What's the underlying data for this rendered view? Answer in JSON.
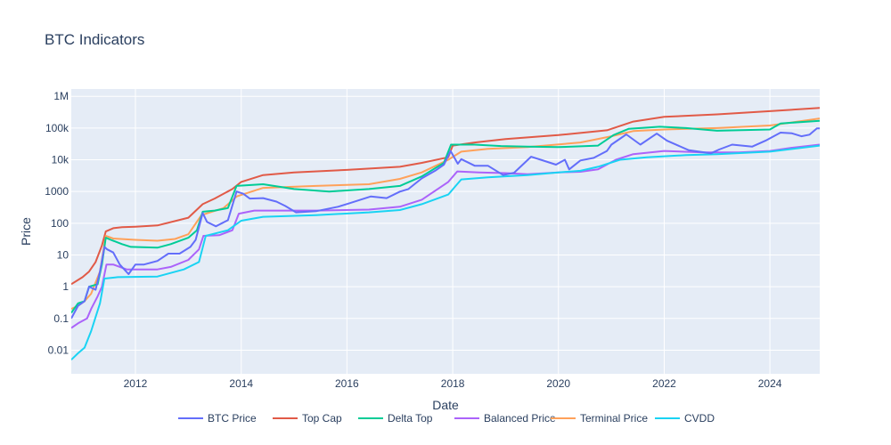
{
  "chart_data": {
    "type": "line",
    "title": "BTC Indicators",
    "xlabel": "Date",
    "ylabel": "Price",
    "x_range": [
      "2010-10-15",
      "2024-12-10"
    ],
    "y_scale": "log",
    "y_range": [
      0.0018,
      1700000
    ],
    "grid": true,
    "legend_position": "bottom-center",
    "plot_background": "#e5ecf6",
    "x_ticks": [
      "2012",
      "2014",
      "2016",
      "2018",
      "2020",
      "2022",
      "2024"
    ],
    "y_ticks": [
      {
        "value": 0.01,
        "label": "0.01"
      },
      {
        "value": 0.1,
        "label": "0.1"
      },
      {
        "value": 1,
        "label": "1"
      },
      {
        "value": 10,
        "label": "10"
      },
      {
        "value": 100,
        "label": "100"
      },
      {
        "value": 1000,
        "label": "1000"
      },
      {
        "value": 10000,
        "label": "10k"
      },
      {
        "value": 100000,
        "label": "100k"
      },
      {
        "value": 1000000,
        "label": "1M"
      }
    ],
    "series": [
      {
        "name": "BTC Price",
        "color": "#636efa",
        "points": [
          [
            "2010-10-15",
            0.1
          ],
          [
            "2010-12-01",
            0.25
          ],
          [
            "2011-01-15",
            0.35
          ],
          [
            "2011-02-15",
            1.0
          ],
          [
            "2011-04-01",
            0.8
          ],
          [
            "2011-05-01",
            3.0
          ],
          [
            "2011-06-01",
            18
          ],
          [
            "2011-06-20",
            15
          ],
          [
            "2011-08-01",
            12
          ],
          [
            "2011-09-15",
            5
          ],
          [
            "2011-11-15",
            2.5
          ],
          [
            "2012-01-01",
            5
          ],
          [
            "2012-03-01",
            5
          ],
          [
            "2012-06-01",
            6.5
          ],
          [
            "2012-08-15",
            11
          ],
          [
            "2012-11-01",
            11
          ],
          [
            "2013-01-15",
            18
          ],
          [
            "2013-02-20",
            30
          ],
          [
            "2013-04-10",
            210
          ],
          [
            "2013-05-10",
            110
          ],
          [
            "2013-07-10",
            80
          ],
          [
            "2013-10-01",
            125
          ],
          [
            "2013-11-30",
            1000
          ],
          [
            "2014-01-15",
            850
          ],
          [
            "2014-03-01",
            600
          ],
          [
            "2014-06-01",
            620
          ],
          [
            "2014-09-01",
            480
          ],
          [
            "2014-11-01",
            350
          ],
          [
            "2015-01-15",
            220
          ],
          [
            "2015-06-01",
            240
          ],
          [
            "2015-11-01",
            330
          ],
          [
            "2016-01-15",
            420
          ],
          [
            "2016-06-15",
            700
          ],
          [
            "2016-10-01",
            620
          ],
          [
            "2017-01-01",
            990
          ],
          [
            "2017-03-01",
            1200
          ],
          [
            "2017-06-01",
            2600
          ],
          [
            "2017-09-01",
            4500
          ],
          [
            "2017-11-01",
            7000
          ],
          [
            "2017-12-17",
            19000
          ],
          [
            "2018-02-05",
            7500
          ],
          [
            "2018-03-01",
            10500
          ],
          [
            "2018-06-01",
            6500
          ],
          [
            "2018-09-01",
            6500
          ],
          [
            "2018-12-15",
            3300
          ],
          [
            "2019-03-01",
            3900
          ],
          [
            "2019-06-26",
            12500
          ],
          [
            "2019-09-01",
            10000
          ],
          [
            "2019-12-15",
            7000
          ],
          [
            "2020-02-15",
            10000
          ],
          [
            "2020-03-15",
            5000
          ],
          [
            "2020-06-01",
            9500
          ],
          [
            "2020-09-01",
            11500
          ],
          [
            "2020-12-01",
            19000
          ],
          [
            "2021-01-01",
            30000
          ],
          [
            "2021-04-14",
            63000
          ],
          [
            "2021-07-20",
            30000
          ],
          [
            "2021-11-10",
            67000
          ],
          [
            "2022-01-20",
            40000
          ],
          [
            "2022-06-20",
            20000
          ],
          [
            "2022-11-20",
            16000
          ],
          [
            "2023-01-15",
            21000
          ],
          [
            "2023-04-15",
            30000
          ],
          [
            "2023-09-01",
            26000
          ],
          [
            "2023-12-01",
            40000
          ],
          [
            "2024-03-14",
            72000
          ],
          [
            "2024-06-01",
            68000
          ],
          [
            "2024-08-05",
            55000
          ],
          [
            "2024-10-01",
            62000
          ],
          [
            "2024-11-20",
            97000
          ],
          [
            "2024-12-10",
            98000
          ]
        ]
      },
      {
        "name": "Top Cap",
        "color": "#e15a47",
        "points": [
          [
            "2010-10-15",
            1.2
          ],
          [
            "2011-01-01",
            2.0
          ],
          [
            "2011-02-15",
            3.0
          ],
          [
            "2011-04-01",
            6.0
          ],
          [
            "2011-05-15",
            20
          ],
          [
            "2011-06-10",
            55
          ],
          [
            "2011-08-01",
            70
          ],
          [
            "2011-10-01",
            75
          ],
          [
            "2012-01-01",
            78
          ],
          [
            "2012-06-01",
            85
          ],
          [
            "2013-01-01",
            150
          ],
          [
            "2013-04-10",
            400
          ],
          [
            "2013-07-01",
            600
          ],
          [
            "2013-11-01",
            1200
          ],
          [
            "2014-01-01",
            2000
          ],
          [
            "2014-06-01",
            3300
          ],
          [
            "2015-01-01",
            4000
          ],
          [
            "2016-01-01",
            4800
          ],
          [
            "2017-01-01",
            6000
          ],
          [
            "2017-06-01",
            8000
          ],
          [
            "2017-12-01",
            12000
          ],
          [
            "2018-01-01",
            28000
          ],
          [
            "2018-06-01",
            35000
          ],
          [
            "2019-01-01",
            45000
          ],
          [
            "2020-01-01",
            60000
          ],
          [
            "2020-12-01",
            85000
          ],
          [
            "2021-06-01",
            160000
          ],
          [
            "2022-01-01",
            225000
          ],
          [
            "2023-01-01",
            270000
          ],
          [
            "2024-01-01",
            340000
          ],
          [
            "2024-12-10",
            430000
          ]
        ]
      },
      {
        "name": "Delta Top",
        "color": "#00cc96",
        "points": [
          [
            "2010-10-15",
            0.15
          ],
          [
            "2010-12-01",
            0.3
          ],
          [
            "2011-01-15",
            0.35
          ],
          [
            "2011-02-15",
            1.0
          ],
          [
            "2011-04-15",
            1.2
          ],
          [
            "2011-05-15",
            5.0
          ],
          [
            "2011-06-10",
            35
          ],
          [
            "2011-07-15",
            30
          ],
          [
            "2011-10-01",
            22
          ],
          [
            "2011-12-01",
            18
          ],
          [
            "2012-06-01",
            17
          ],
          [
            "2012-09-01",
            22
          ],
          [
            "2013-01-01",
            35
          ],
          [
            "2013-03-01",
            60
          ],
          [
            "2013-04-10",
            230
          ],
          [
            "2013-07-01",
            250
          ],
          [
            "2013-10-01",
            300
          ],
          [
            "2013-11-30",
            1500
          ],
          [
            "2014-06-01",
            1700
          ],
          [
            "2015-01-01",
            1200
          ],
          [
            "2015-09-01",
            1000
          ],
          [
            "2016-06-01",
            1200
          ],
          [
            "2017-01-01",
            1500
          ],
          [
            "2017-06-01",
            3000
          ],
          [
            "2017-11-01",
            8000
          ],
          [
            "2017-12-20",
            30000
          ],
          [
            "2018-06-01",
            30000
          ],
          [
            "2018-12-01",
            27000
          ],
          [
            "2019-06-01",
            26000
          ],
          [
            "2020-01-01",
            25000
          ],
          [
            "2020-10-01",
            28000
          ],
          [
            "2021-01-15",
            60000
          ],
          [
            "2021-05-01",
            95000
          ],
          [
            "2021-12-01",
            110000
          ],
          [
            "2022-06-01",
            100000
          ],
          [
            "2023-01-01",
            82000
          ],
          [
            "2024-01-01",
            90000
          ],
          [
            "2024-03-14",
            140000
          ],
          [
            "2024-12-10",
            170000
          ]
        ]
      },
      {
        "name": "Balanced Price",
        "color": "#ab63fa",
        "points": [
          [
            "2010-10-15",
            0.05
          ],
          [
            "2010-12-01",
            0.07
          ],
          [
            "2011-02-01",
            0.1
          ],
          [
            "2011-03-01",
            0.2
          ],
          [
            "2011-04-15",
            0.5
          ],
          [
            "2011-05-15",
            1.0
          ],
          [
            "2011-06-15",
            5
          ],
          [
            "2011-08-01",
            5
          ],
          [
            "2011-11-01",
            3.5
          ],
          [
            "2012-06-01",
            3.5
          ],
          [
            "2012-09-01",
            4.2
          ],
          [
            "2013-01-01",
            7
          ],
          [
            "2013-03-15",
            15
          ],
          [
            "2013-04-15",
            40
          ],
          [
            "2013-08-01",
            42
          ],
          [
            "2013-11-01",
            60
          ],
          [
            "2013-12-15",
            200
          ],
          [
            "2014-04-01",
            250
          ],
          [
            "2015-06-01",
            250
          ],
          [
            "2016-06-01",
            270
          ],
          [
            "2017-01-01",
            330
          ],
          [
            "2017-06-01",
            550
          ],
          [
            "2017-12-01",
            2000
          ],
          [
            "2018-02-01",
            4300
          ],
          [
            "2018-07-01",
            4000
          ],
          [
            "2019-01-01",
            3800
          ],
          [
            "2019-06-01",
            3500
          ],
          [
            "2020-01-01",
            4000
          ],
          [
            "2020-06-01",
            4200
          ],
          [
            "2020-10-01",
            5000
          ],
          [
            "2021-02-01",
            10000
          ],
          [
            "2021-06-01",
            15000
          ],
          [
            "2022-01-01",
            19000
          ],
          [
            "2022-10-01",
            17000
          ],
          [
            "2023-06-01",
            17000
          ],
          [
            "2024-01-01",
            19000
          ],
          [
            "2024-06-01",
            24000
          ],
          [
            "2024-12-10",
            30000
          ]
        ]
      },
      {
        "name": "Terminal Price",
        "color": "#ffa15a",
        "points": [
          [
            "2010-10-15",
            0.2
          ],
          [
            "2010-12-01",
            0.25
          ],
          [
            "2011-01-15",
            0.35
          ],
          [
            "2011-03-01",
            0.6
          ],
          [
            "2011-05-01",
            3.0
          ],
          [
            "2011-06-10",
            40
          ],
          [
            "2011-08-01",
            33
          ],
          [
            "2012-01-01",
            30
          ],
          [
            "2012-06-01",
            28
          ],
          [
            "2012-10-01",
            32
          ],
          [
            "2013-01-01",
            45
          ],
          [
            "2013-04-01",
            180
          ],
          [
            "2013-09-01",
            300
          ],
          [
            "2013-12-01",
            700
          ],
          [
            "2014-06-01",
            1300
          ],
          [
            "2015-06-01",
            1500
          ],
          [
            "2016-06-01",
            1700
          ],
          [
            "2017-01-01",
            2500
          ],
          [
            "2017-06-01",
            4000
          ],
          [
            "2017-12-01",
            10000
          ],
          [
            "2018-03-01",
            18000
          ],
          [
            "2018-09-01",
            22000
          ],
          [
            "2019-06-01",
            25000
          ],
          [
            "2020-06-01",
            35000
          ],
          [
            "2021-01-01",
            55000
          ],
          [
            "2021-06-01",
            80000
          ],
          [
            "2022-01-01",
            90000
          ],
          [
            "2023-01-01",
            100000
          ],
          [
            "2024-01-01",
            120000
          ],
          [
            "2024-12-10",
            200000
          ]
        ]
      },
      {
        "name": "CVDD",
        "color": "#19d3f3",
        "points": [
          [
            "2010-10-15",
            0.005
          ],
          [
            "2010-12-01",
            0.008
          ],
          [
            "2011-01-15",
            0.012
          ],
          [
            "2011-03-01",
            0.04
          ],
          [
            "2011-05-01",
            0.3
          ],
          [
            "2011-06-01",
            1.8
          ],
          [
            "2011-09-01",
            2.0
          ],
          [
            "2012-06-01",
            2.1
          ],
          [
            "2012-12-01",
            3.5
          ],
          [
            "2013-03-15",
            6
          ],
          [
            "2013-05-01",
            40
          ],
          [
            "2013-10-01",
            60
          ],
          [
            "2014-01-01",
            120
          ],
          [
            "2014-06-01",
            160
          ],
          [
            "2015-06-01",
            180
          ],
          [
            "2016-06-01",
            220
          ],
          [
            "2017-01-01",
            260
          ],
          [
            "2017-06-01",
            400
          ],
          [
            "2017-12-01",
            800
          ],
          [
            "2018-03-01",
            2400
          ],
          [
            "2018-09-01",
            2800
          ],
          [
            "2019-06-01",
            3300
          ],
          [
            "2020-01-01",
            4000
          ],
          [
            "2020-06-01",
            4500
          ],
          [
            "2020-10-01",
            6000
          ],
          [
            "2021-03-01",
            10000
          ],
          [
            "2021-09-01",
            12000
          ],
          [
            "2022-06-01",
            14000
          ],
          [
            "2023-01-01",
            15000
          ],
          [
            "2024-01-01",
            18000
          ],
          [
            "2024-12-10",
            28000
          ]
        ]
      }
    ]
  }
}
